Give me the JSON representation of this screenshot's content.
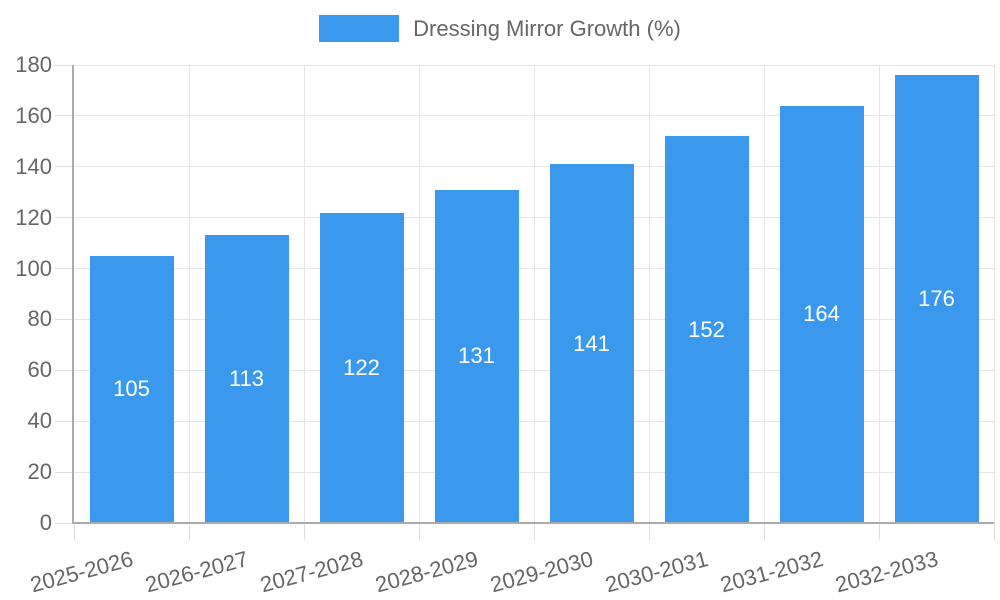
{
  "legend": {
    "label": "Dressing Mirror Growth (%)"
  },
  "chart_data": {
    "type": "bar",
    "title": "Dressing Mirror Growth (%)",
    "series_label": "Dressing Mirror Growth (%)",
    "categories": [
      "2025-2026",
      "2026-2027",
      "2027-2028",
      "2028-2029",
      "2029-2030",
      "2030-2031",
      "2031-2032",
      "2032-2033"
    ],
    "values": [
      105,
      113,
      122,
      131,
      141,
      152,
      164,
      176
    ],
    "y_ticks": [
      0,
      20,
      40,
      60,
      80,
      100,
      120,
      140,
      160,
      180
    ],
    "ylim": [
      0,
      180
    ],
    "xlabel": "",
    "ylabel": "",
    "grid": true,
    "legend_position": "top",
    "colors": {
      "bar": "#3A99EC",
      "value_label": "#FFFFFF",
      "axis_text": "#666666",
      "grid": "#E6E6E6",
      "tick": "#DEDEDE",
      "axis_line": "#ACACAC",
      "background": "#FFFFFF"
    }
  }
}
